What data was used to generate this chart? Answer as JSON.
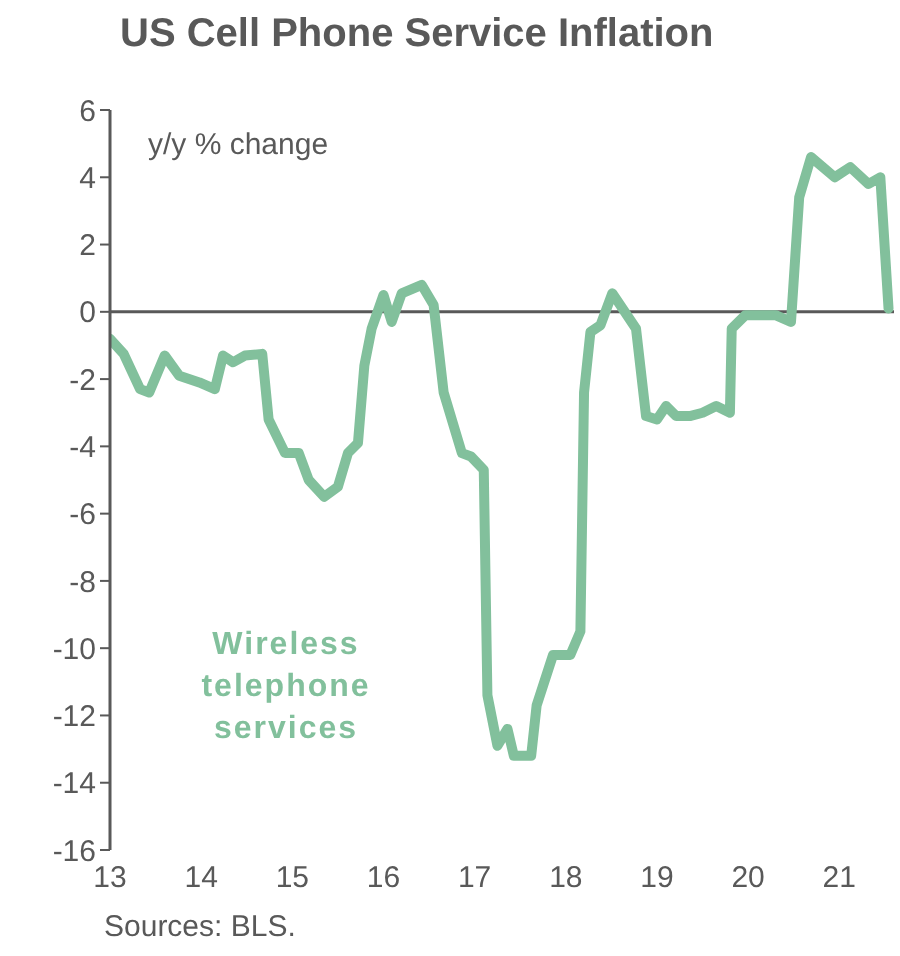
{
  "chart_data": {
    "type": "line",
    "title": "US Cell Phone Service Inflation",
    "ylabel": "y/y % change",
    "annotations": [
      "Sources: BLS."
    ],
    "x": [
      13.0,
      13.15,
      13.33,
      13.43,
      13.6,
      13.76,
      13.98,
      14.15,
      14.24,
      14.35,
      14.48,
      14.67,
      14.74,
      14.92,
      15.07,
      15.18,
      15.35,
      15.5,
      15.61,
      15.72,
      15.79,
      15.87,
      16.0,
      16.09,
      16.2,
      16.42,
      16.55,
      16.66,
      16.86,
      16.96,
      17.1,
      17.14,
      17.25,
      17.36,
      17.43,
      17.62,
      17.68,
      17.86,
      18.05,
      18.16,
      18.2,
      18.27,
      18.38,
      18.51,
      18.77,
      18.88,
      19.0,
      19.1,
      19.21,
      19.36,
      19.5,
      19.65,
      19.8,
      19.82,
      19.97,
      20.3,
      20.47,
      20.56,
      20.69,
      20.95,
      21.12,
      21.32,
      21.45,
      21.54
    ],
    "series": [
      {
        "name": "Wireless telephone services",
        "color": "#82c09c",
        "values": [
          -0.8,
          -1.25,
          -2.3,
          -2.4,
          -1.3,
          -1.9,
          -2.1,
          -2.3,
          -1.3,
          -1.5,
          -1.3,
          -1.25,
          -3.2,
          -4.2,
          -4.2,
          -5.0,
          -5.5,
          -5.2,
          -4.2,
          -3.9,
          -1.6,
          -0.5,
          0.5,
          -0.3,
          0.55,
          0.8,
          0.2,
          -2.4,
          -4.2,
          -4.3,
          -4.7,
          -11.4,
          -12.9,
          -12.4,
          -13.2,
          -13.2,
          -11.7,
          -10.2,
          -10.2,
          -9.5,
          -2.4,
          -0.6,
          -0.4,
          0.55,
          -0.5,
          -3.1,
          -3.2,
          -2.8,
          -3.1,
          -3.1,
          -3.0,
          -2.8,
          -3.0,
          -0.5,
          -0.1,
          -0.1,
          -0.3,
          3.4,
          4.6,
          4.0,
          4.3,
          3.8,
          4.0,
          0.1
        ]
      }
    ],
    "xlim": [
      13,
      21.6
    ],
    "xticks": [
      13,
      14,
      15,
      16,
      17,
      18,
      19,
      20,
      21
    ],
    "ylim": [
      -16,
      6
    ],
    "yticks": [
      -16,
      -14,
      -12,
      -10,
      -8,
      -6,
      -4,
      -2,
      0,
      2,
      4,
      6
    ],
    "ref_lines": [
      {
        "axis": "y",
        "value": 0,
        "color": "#595959"
      }
    ],
    "grid": false,
    "marker": "none",
    "line_style": "solid"
  }
}
